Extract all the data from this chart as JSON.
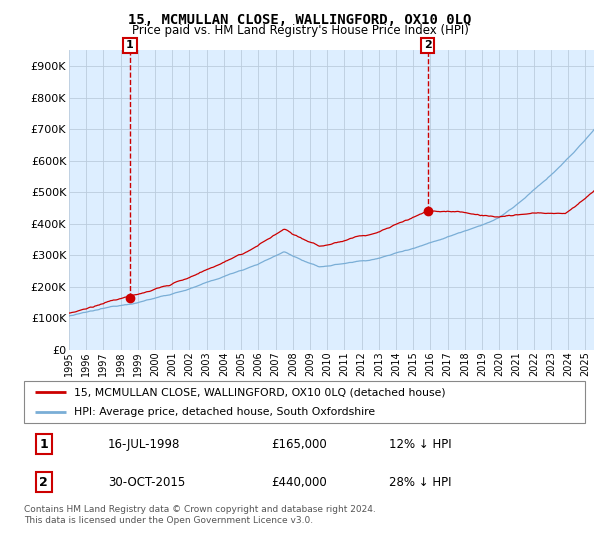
{
  "title": "15, MCMULLAN CLOSE, WALLINGFORD, OX10 0LQ",
  "subtitle": "Price paid vs. HM Land Registry's House Price Index (HPI)",
  "ylabel_ticks": [
    "£0",
    "£100K",
    "£200K",
    "£300K",
    "£400K",
    "£500K",
    "£600K",
    "£700K",
    "£800K",
    "£900K"
  ],
  "ytick_values": [
    0,
    100000,
    200000,
    300000,
    400000,
    500000,
    600000,
    700000,
    800000,
    900000
  ],
  "ylim": [
    0,
    950000
  ],
  "xlim_start": 1995.0,
  "xlim_end": 2025.5,
  "xtick_years": [
    1995,
    1996,
    1997,
    1998,
    1999,
    2000,
    2001,
    2002,
    2003,
    2004,
    2005,
    2006,
    2007,
    2008,
    2009,
    2010,
    2011,
    2012,
    2013,
    2014,
    2015,
    2016,
    2017,
    2018,
    2019,
    2020,
    2021,
    2022,
    2023,
    2024,
    2025
  ],
  "sale1_x": 1998.54,
  "sale1_y": 165000,
  "sale1_label": "1",
  "sale2_x": 2015.83,
  "sale2_y": 440000,
  "sale2_label": "2",
  "red_color": "#cc0000",
  "blue_color": "#7aaed6",
  "plot_bg_color": "#ddeeff",
  "legend_line1": "15, MCMULLAN CLOSE, WALLINGFORD, OX10 0LQ (detached house)",
  "legend_line2": "HPI: Average price, detached house, South Oxfordshire",
  "table_row1_num": "1",
  "table_row1_date": "16-JUL-1998",
  "table_row1_price": "£165,000",
  "table_row1_hpi": "12% ↓ HPI",
  "table_row2_num": "2",
  "table_row2_date": "30-OCT-2015",
  "table_row2_price": "£440,000",
  "table_row2_hpi": "28% ↓ HPI",
  "footer": "Contains HM Land Registry data © Crown copyright and database right 2024.\nThis data is licensed under the Open Government Licence v3.0.",
  "bg_color": "#ffffff",
  "grid_color": "#bbccdd"
}
